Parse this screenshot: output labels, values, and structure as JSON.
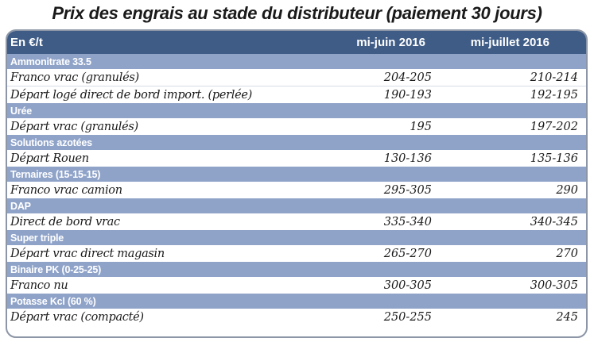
{
  "title": "Prix des engrais au stade du distributeur (paiement 30 jours)",
  "table": {
    "headers": [
      "En €/t",
      "mi-juin 2016",
      "mi-juillet 2016"
    ],
    "sections": [
      {
        "name": "Ammonitrate 33.5",
        "rows": [
          {
            "label": "Franco vrac (granulés)",
            "juin": "204-205",
            "juillet": "210-214"
          },
          {
            "label": "Départ logé direct de bord import. (perlée)",
            "juin": "190-193",
            "juillet": "192-195"
          }
        ]
      },
      {
        "name": "Urée",
        "rows": [
          {
            "label": "Départ vrac (granulés)",
            "juin": "195",
            "juillet": "197-202"
          }
        ]
      },
      {
        "name": "Solutions azotées",
        "rows": [
          {
            "label": "Départ Rouen",
            "juin": "130-136",
            "juillet": "135-136"
          }
        ]
      },
      {
        "name": "Ternaires (15-15-15)",
        "rows": [
          {
            "label": "Franco vrac camion",
            "juin": "295-305",
            "juillet": "290"
          }
        ]
      },
      {
        "name": "DAP",
        "rows": [
          {
            "label": "Direct de bord vrac",
            "juin": "335-340",
            "juillet": "340-345"
          }
        ]
      },
      {
        "name": "Super triple",
        "rows": [
          {
            "label": "Départ vrac direct magasin",
            "juin": "265-270",
            "juillet": "270"
          }
        ]
      },
      {
        "name": "Binaire PK (0-25-25)",
        "rows": [
          {
            "label": "Franco nu",
            "juin": "300-305",
            "juillet": "300-305"
          }
        ]
      },
      {
        "name": "Potasse Kcl (60 %)",
        "rows": [
          {
            "label": "Départ vrac (compacté)",
            "juin": "250-255",
            "juillet": "245"
          }
        ]
      }
    ]
  }
}
